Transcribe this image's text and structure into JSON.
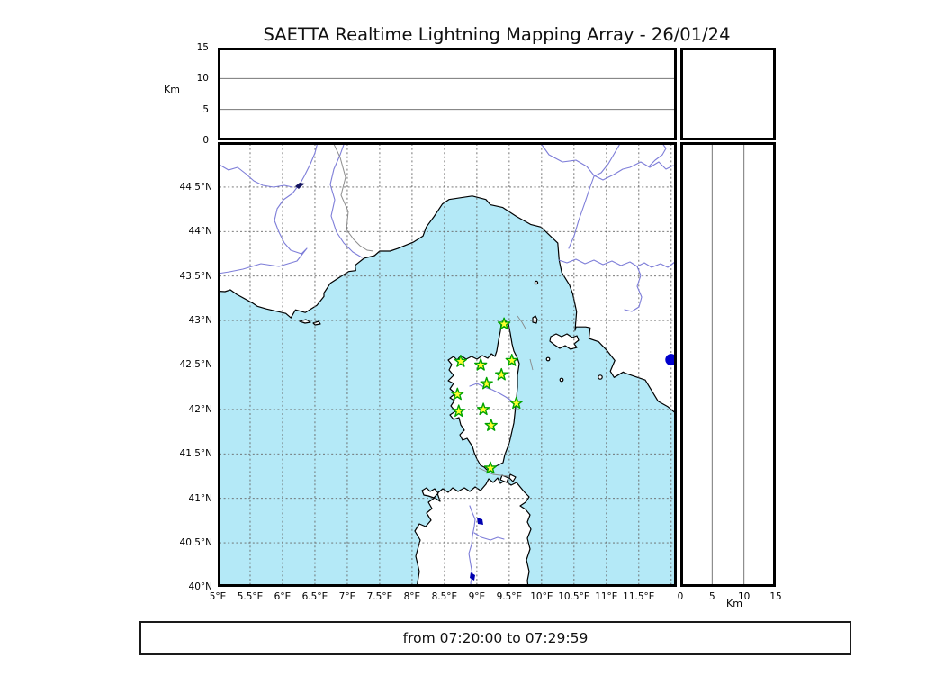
{
  "title": "SAETTA Realtime Lightning Mapping Array - 26/01/24",
  "footer": {
    "text": "from 07:20:00 to 07:29:59"
  },
  "altitude_panel": {
    "axis_label": "Km",
    "ticks": [
      {
        "label": "0",
        "value": 0
      },
      {
        "label": "5",
        "value": 5
      },
      {
        "label": "10",
        "value": 10
      },
      {
        "label": "15",
        "value": 15
      }
    ],
    "gridlines": [
      5,
      10
    ]
  },
  "right_panel": {
    "axis_label": "Km",
    "ticks": [
      {
        "label": "0",
        "value": 0
      },
      {
        "label": "5",
        "value": 5
      },
      {
        "label": "10",
        "value": 10
      },
      {
        "label": "15",
        "value": 15
      }
    ],
    "gridlines": [
      5,
      10
    ]
  },
  "map_panel": {
    "lon_ticks": [
      {
        "label": "5°E",
        "value": 5
      },
      {
        "label": "5.5°E",
        "value": 5.5
      },
      {
        "label": "6°E",
        "value": 6
      },
      {
        "label": "6.5°E",
        "value": 6.5
      },
      {
        "label": "7°E",
        "value": 7
      },
      {
        "label": "7.5°E",
        "value": 7.5
      },
      {
        "label": "8°E",
        "value": 8
      },
      {
        "label": "8.5°E",
        "value": 8.5
      },
      {
        "label": "9°E",
        "value": 9
      },
      {
        "label": "9.5°E",
        "value": 9.5
      },
      {
        "label": "10°E",
        "value": 10
      },
      {
        "label": "10.5°E",
        "value": 10.5
      },
      {
        "label": "11°E",
        "value": 11
      },
      {
        "label": "11.5°E",
        "value": 11.5
      }
    ],
    "extra_lon_gridlines": [
      12
    ],
    "lat_ticks": [
      {
        "label": "44.5°N",
        "value": 44.5
      },
      {
        "label": "44°N",
        "value": 44
      },
      {
        "label": "43.5°N",
        "value": 43.5
      },
      {
        "label": "43°N",
        "value": 43
      },
      {
        "label": "42.5°N",
        "value": 42.5
      },
      {
        "label": "42°N",
        "value": 42
      },
      {
        "label": "41.5°N",
        "value": 41.5
      },
      {
        "label": "41°N",
        "value": 41
      },
      {
        "label": "40.5°N",
        "value": 40.5
      },
      {
        "label": "40°N",
        "value": 40
      }
    ]
  },
  "chart_data": {
    "type": "scatter",
    "title": "SAETTA Realtime Lightning Mapping Array - 26/01/24",
    "time_window": "from 07:20:00 to 07:29:59",
    "map_extent": {
      "lon": [
        5.0,
        12.08
      ],
      "lat": [
        40.0,
        45.0
      ]
    },
    "altitude_axis_km": {
      "range": [
        0,
        15
      ],
      "gridlines": [
        5,
        10
      ]
    },
    "stations": [
      {
        "lon": 9.42,
        "lat": 42.96
      },
      {
        "lon": 8.75,
        "lat": 42.54
      },
      {
        "lon": 9.06,
        "lat": 42.5
      },
      {
        "lon": 9.54,
        "lat": 42.55
      },
      {
        "lon": 9.38,
        "lat": 42.39
      },
      {
        "lon": 9.15,
        "lat": 42.29
      },
      {
        "lon": 8.7,
        "lat": 42.17
      },
      {
        "lon": 9.61,
        "lat": 42.07
      },
      {
        "lon": 8.72,
        "lat": 41.98
      },
      {
        "lon": 9.1,
        "lat": 42.0
      },
      {
        "lon": 9.22,
        "lat": 41.82
      },
      {
        "lon": 9.21,
        "lat": 41.34
      }
    ],
    "events": [
      {
        "lon": 12.0,
        "lat": 42.56
      }
    ],
    "station_marker": {
      "shape": "star",
      "fill": "#ffff2e",
      "stroke": "#00a300"
    },
    "event_marker": {
      "shape": "circle",
      "fill": "#0000cc"
    },
    "colors": {
      "sea": "#b4e9f7",
      "land": "#ffffff",
      "coast": "#000000",
      "grid": "#666666",
      "river": "#7d7dd8",
      "country_border": "#8c8c8c"
    }
  }
}
